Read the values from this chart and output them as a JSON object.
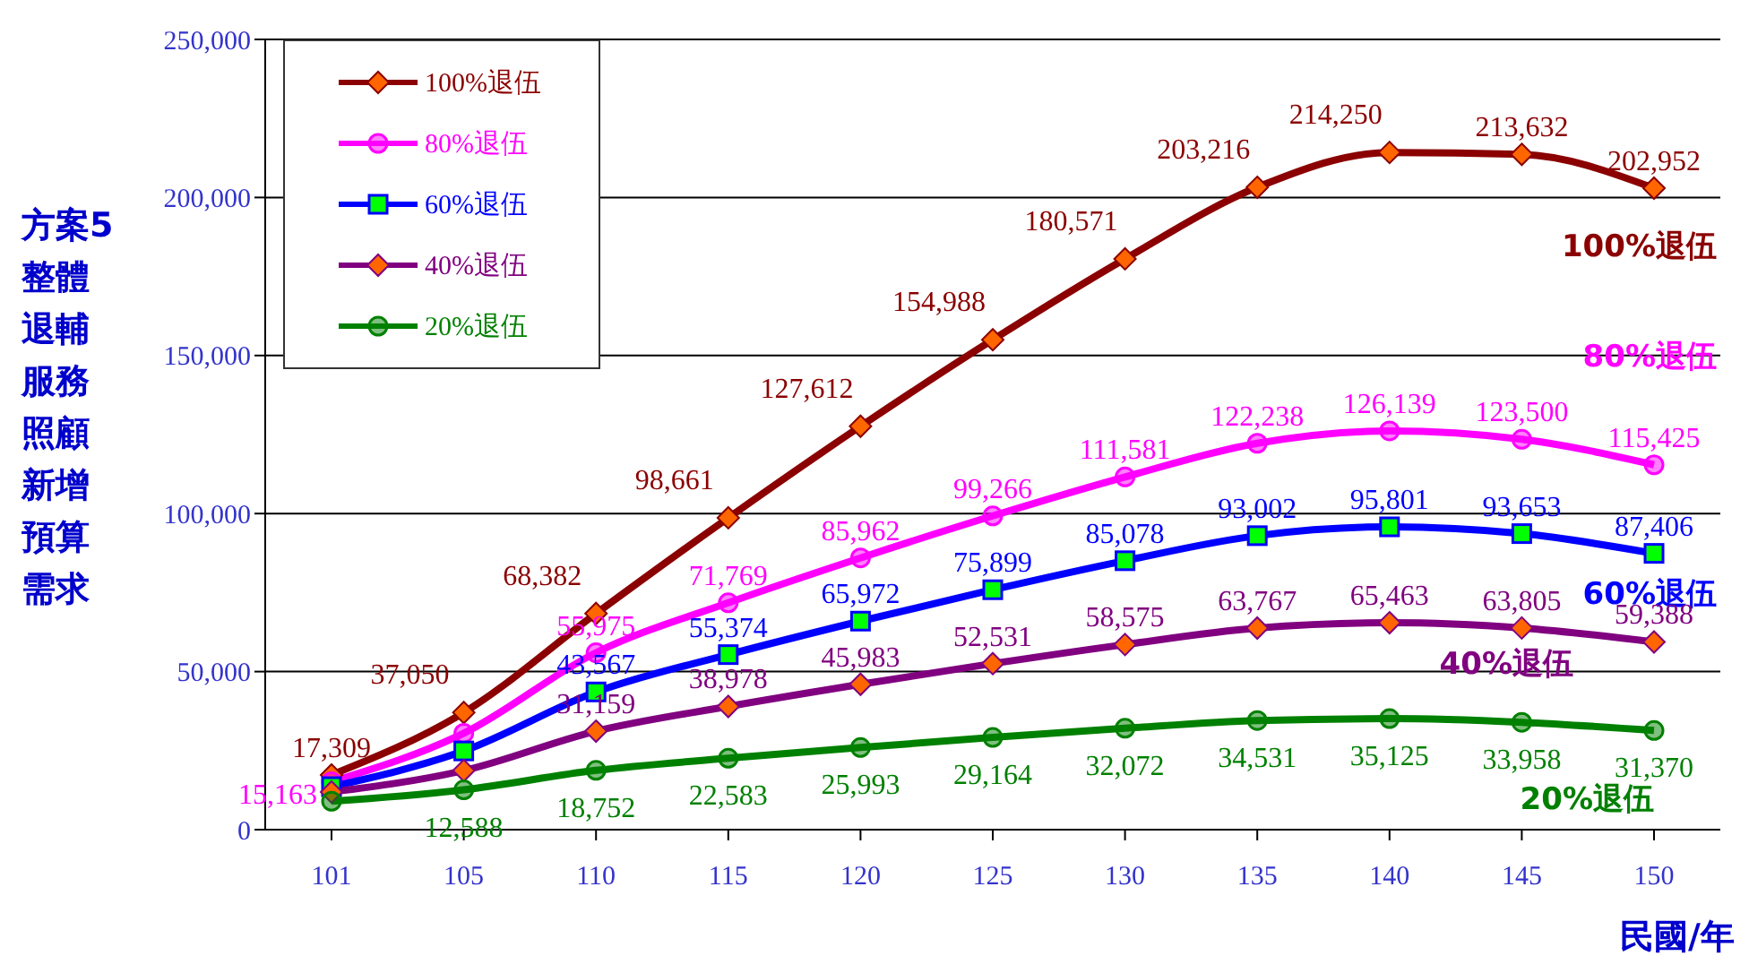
{
  "chart_data": {
    "type": "line",
    "ylabel": "方案5整體退輔服務照顧新增預算需求",
    "xlabel": "民國/年",
    "categories": [
      "101",
      "105",
      "110",
      "115",
      "120",
      "125",
      "130",
      "135",
      "140",
      "145",
      "150"
    ],
    "ylim": [
      0,
      250000
    ],
    "yticks": [
      {
        "value": 0,
        "label": "0"
      },
      {
        "value": 50000,
        "label": "50,000"
      },
      {
        "value": 100000,
        "label": "100,000"
      },
      {
        "value": 150000,
        "label": "150,000"
      },
      {
        "value": 200000,
        "label": "200,000"
      },
      {
        "value": 250000,
        "label": "250,000"
      }
    ],
    "grid": "y",
    "legend": "top left",
    "series": [
      {
        "name": "100%退伍",
        "color": "#8b0000",
        "marker": "diamond",
        "values": [
          17309,
          37050,
          68382,
          98661,
          127612,
          154988,
          180571,
          203216,
          214250,
          213632,
          202952
        ],
        "value_labels": [
          "17,309",
          "37,050",
          "68,382",
          "98,661",
          "127,612",
          "154,988",
          "180,571",
          "203,216",
          "214,250",
          "213,632",
          "202,952"
        ]
      },
      {
        "name": "80%退伍",
        "color": "#ff00ff",
        "marker": "circle",
        "values": [
          15163,
          30500,
          55975,
          71769,
          85962,
          99266,
          111581,
          122238,
          126139,
          123500,
          115425
        ],
        "value_labels": [
          "15,163",
          null,
          "55,975",
          "71,769",
          "85,962",
          "99,266",
          "111,581",
          "122,238",
          "126,139",
          "123,500",
          "115,425"
        ]
      },
      {
        "name": "60%退伍",
        "color": "#0000ff",
        "marker": "square",
        "values": [
          13600,
          24900,
          43567,
          55374,
          65972,
          75899,
          85078,
          93002,
          95801,
          93653,
          87406
        ],
        "value_labels": [
          null,
          null,
          "43,567",
          "55,374",
          "65,972",
          "75,899",
          "85,078",
          "93,002",
          "95,801",
          "93,653",
          "87,406"
        ]
      },
      {
        "name": "40%退伍",
        "color": "#800080",
        "marker": "diamond",
        "values": [
          11900,
          18700,
          31159,
          38978,
          45983,
          52531,
          58575,
          63767,
          65463,
          63805,
          59388
        ],
        "value_labels": [
          null,
          null,
          "31,159",
          "38,978",
          "45,983",
          "52,531",
          "58,575",
          "63,767",
          "65,463",
          "63,805",
          "59,388"
        ]
      },
      {
        "name": "20%退伍",
        "color": "#008000",
        "marker": "circle",
        "values": [
          9000,
          12588,
          18752,
          22583,
          25993,
          29164,
          32072,
          34531,
          35125,
          33958,
          31370
        ],
        "value_labels": [
          null,
          "12,588",
          "18,752",
          "22,583",
          "25,993",
          "29,164",
          "32,072",
          "34,531",
          "35,125",
          "33,958",
          "31,370"
        ]
      }
    ],
    "annotations": [
      "100%退伍",
      "80%退伍",
      "60%退伍",
      "40%退伍",
      "20%退伍"
    ]
  }
}
